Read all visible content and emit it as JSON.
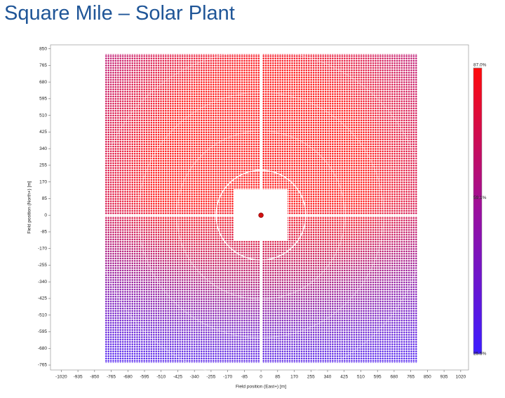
{
  "chart_data": {
    "type": "scatter",
    "title": "Square Mile – Solar Plant",
    "x_label": "Field position (East+) [m]",
    "y_label": "Field position (North+) [m]",
    "xlim": [
      -1075,
      1060
    ],
    "ylim": [
      -790,
      870
    ],
    "xticks": [
      -1020,
      -935,
      -850,
      -765,
      -680,
      -595,
      -510,
      -425,
      -340,
      -255,
      -170,
      -85,
      0,
      85,
      170,
      255,
      340,
      425,
      510,
      595,
      680,
      765,
      850,
      935,
      1020
    ],
    "yticks": [
      850,
      765,
      680,
      595,
      510,
      425,
      340,
      255,
      170,
      85,
      0,
      -85,
      -170,
      -255,
      -340,
      -425,
      -510,
      -595,
      -680,
      -765
    ],
    "x": [
      0
    ],
    "values": [
      0
    ],
    "color": "#d01010",
    "colormap": [
      "#3c1cff",
      "#9a0f9e",
      "#ff0a0a"
    ],
    "clim": [
      25.5,
      87.0
    ],
    "cticks": [
      {
        "value": 87.0,
        "label": "87.0%"
      },
      {
        "value": 59.1,
        "label": "59.1%"
      },
      {
        "value": 25.5,
        "label": "25.5%"
      }
    ]
  }
}
